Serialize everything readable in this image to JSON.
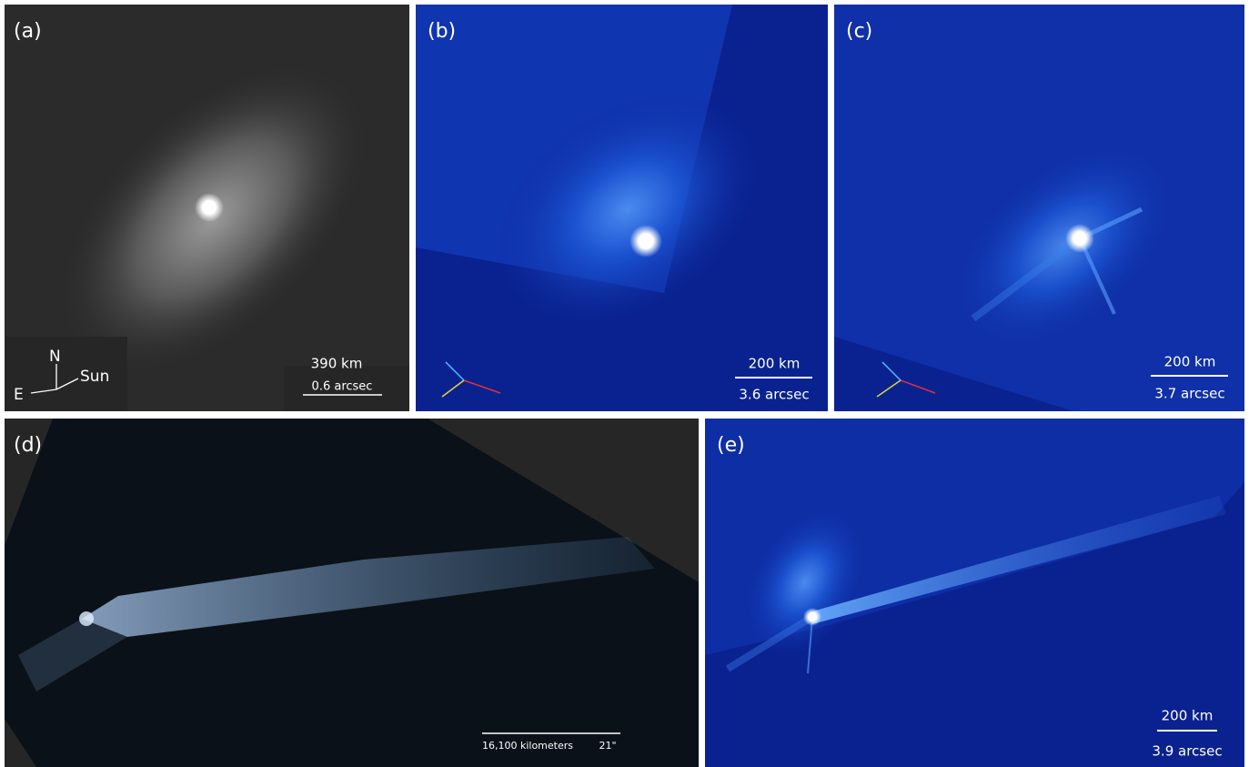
{
  "panels": [
    {
      "label": "(a)",
      "scale_distance": "390 km",
      "scale_angle": "0.6 arcsec",
      "compass": {
        "north": "N",
        "east": "E",
        "sun": "Sun"
      }
    },
    {
      "label": "(b)",
      "scale_distance": "200 km",
      "scale_angle": "3.6 arcsec"
    },
    {
      "label": "(c)",
      "scale_distance": "200 km",
      "scale_angle": "3.7 arcsec"
    },
    {
      "label": "(d)",
      "scale_distance": "16,100 kilometers",
      "scale_angle": "21\""
    },
    {
      "label": "(e)",
      "scale_distance": "200 km",
      "scale_angle": "3.9 arcsec"
    }
  ]
}
